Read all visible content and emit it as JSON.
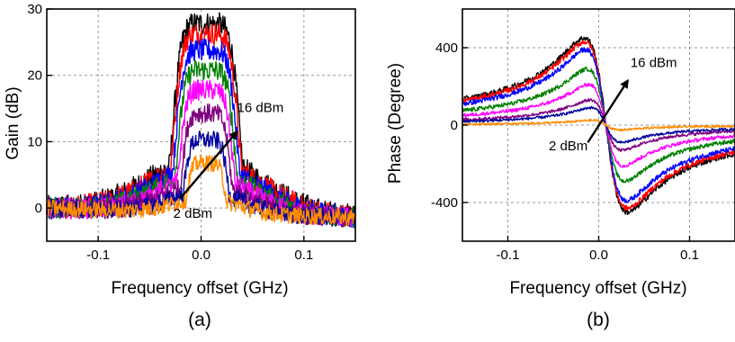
{
  "chart_data": [
    {
      "type": "line",
      "panel_label": "(a)",
      "xlabel": "Frequency offset (GHz)",
      "ylabel": "Gain (dB)",
      "xlim": [
        -0.15,
        0.15
      ],
      "ylim": [
        -5,
        30
      ],
      "x_ticks": [
        {
          "value": -0.1,
          "label": "-0.1"
        },
        {
          "value": 0.0,
          "label": "0.0"
        },
        {
          "value": 0.1,
          "label": "0.1"
        }
      ],
      "y_ticks": [
        {
          "value": 0,
          "label": "0"
        },
        {
          "value": 10,
          "label": "10"
        },
        {
          "value": 20,
          "label": "20"
        },
        {
          "value": 30,
          "label": "30"
        }
      ],
      "grid": true,
      "series": [
        {
          "peak": 28,
          "color": "#000000"
        },
        {
          "peak": 26.5,
          "color": "#ff0000"
        },
        {
          "peak": 24,
          "color": "#0000ff"
        },
        {
          "peak": 21,
          "color": "#008000"
        },
        {
          "peak": 18,
          "color": "#ff00ff"
        },
        {
          "peak": 14.5,
          "color": "#800080"
        },
        {
          "peak": 10.5,
          "color": "#0000a0"
        },
        {
          "peak": 7,
          "color": "#ff8c00"
        }
      ],
      "annotations": [
        {
          "text": "16 dBm",
          "x": 0.035,
          "y": 14.5
        },
        {
          "text": "2 dBm",
          "x": -0.027,
          "y": -1.5
        }
      ],
      "arrow": {
        "from": [
          -0.02,
          1.5
        ],
        "to": [
          0.035,
          11.5
        ]
      }
    },
    {
      "type": "line",
      "panel_label": "(b)",
      "xlabel": "Frequency offset (GHz)",
      "ylabel": "Phase (Degree)",
      "xlim": [
        -0.15,
        0.15
      ],
      "ylim": [
        -600,
        600
      ],
      "x_ticks": [
        {
          "value": -0.1,
          "label": "-0.1"
        },
        {
          "value": 0.0,
          "label": "0.0"
        },
        {
          "value": 0.1,
          "label": "0.1"
        }
      ],
      "y_ticks": [
        {
          "value": -400,
          "label": "-400"
        },
        {
          "value": 0,
          "label": "0"
        },
        {
          "value": 400,
          "label": "400"
        }
      ],
      "grid": true,
      "series": [
        {
          "peak": 450,
          "color": "#000000"
        },
        {
          "peak": 430,
          "color": "#ff0000"
        },
        {
          "peak": 390,
          "color": "#0000ff"
        },
        {
          "peak": 290,
          "color": "#008000"
        },
        {
          "peak": 210,
          "color": "#ff00ff"
        },
        {
          "peak": 130,
          "color": "#800080"
        },
        {
          "peak": 90,
          "color": "#0000a0"
        },
        {
          "peak": 25,
          "color": "#ff8c00"
        }
      ],
      "annotations": [
        {
          "text": "16 dBm",
          "x": 0.035,
          "y": 300
        },
        {
          "text": "2 dBm",
          "x": -0.055,
          "y": -130
        }
      ],
      "arrow": {
        "from": [
          -0.012,
          -90
        ],
        "to": [
          0.032,
          230
        ]
      }
    }
  ]
}
